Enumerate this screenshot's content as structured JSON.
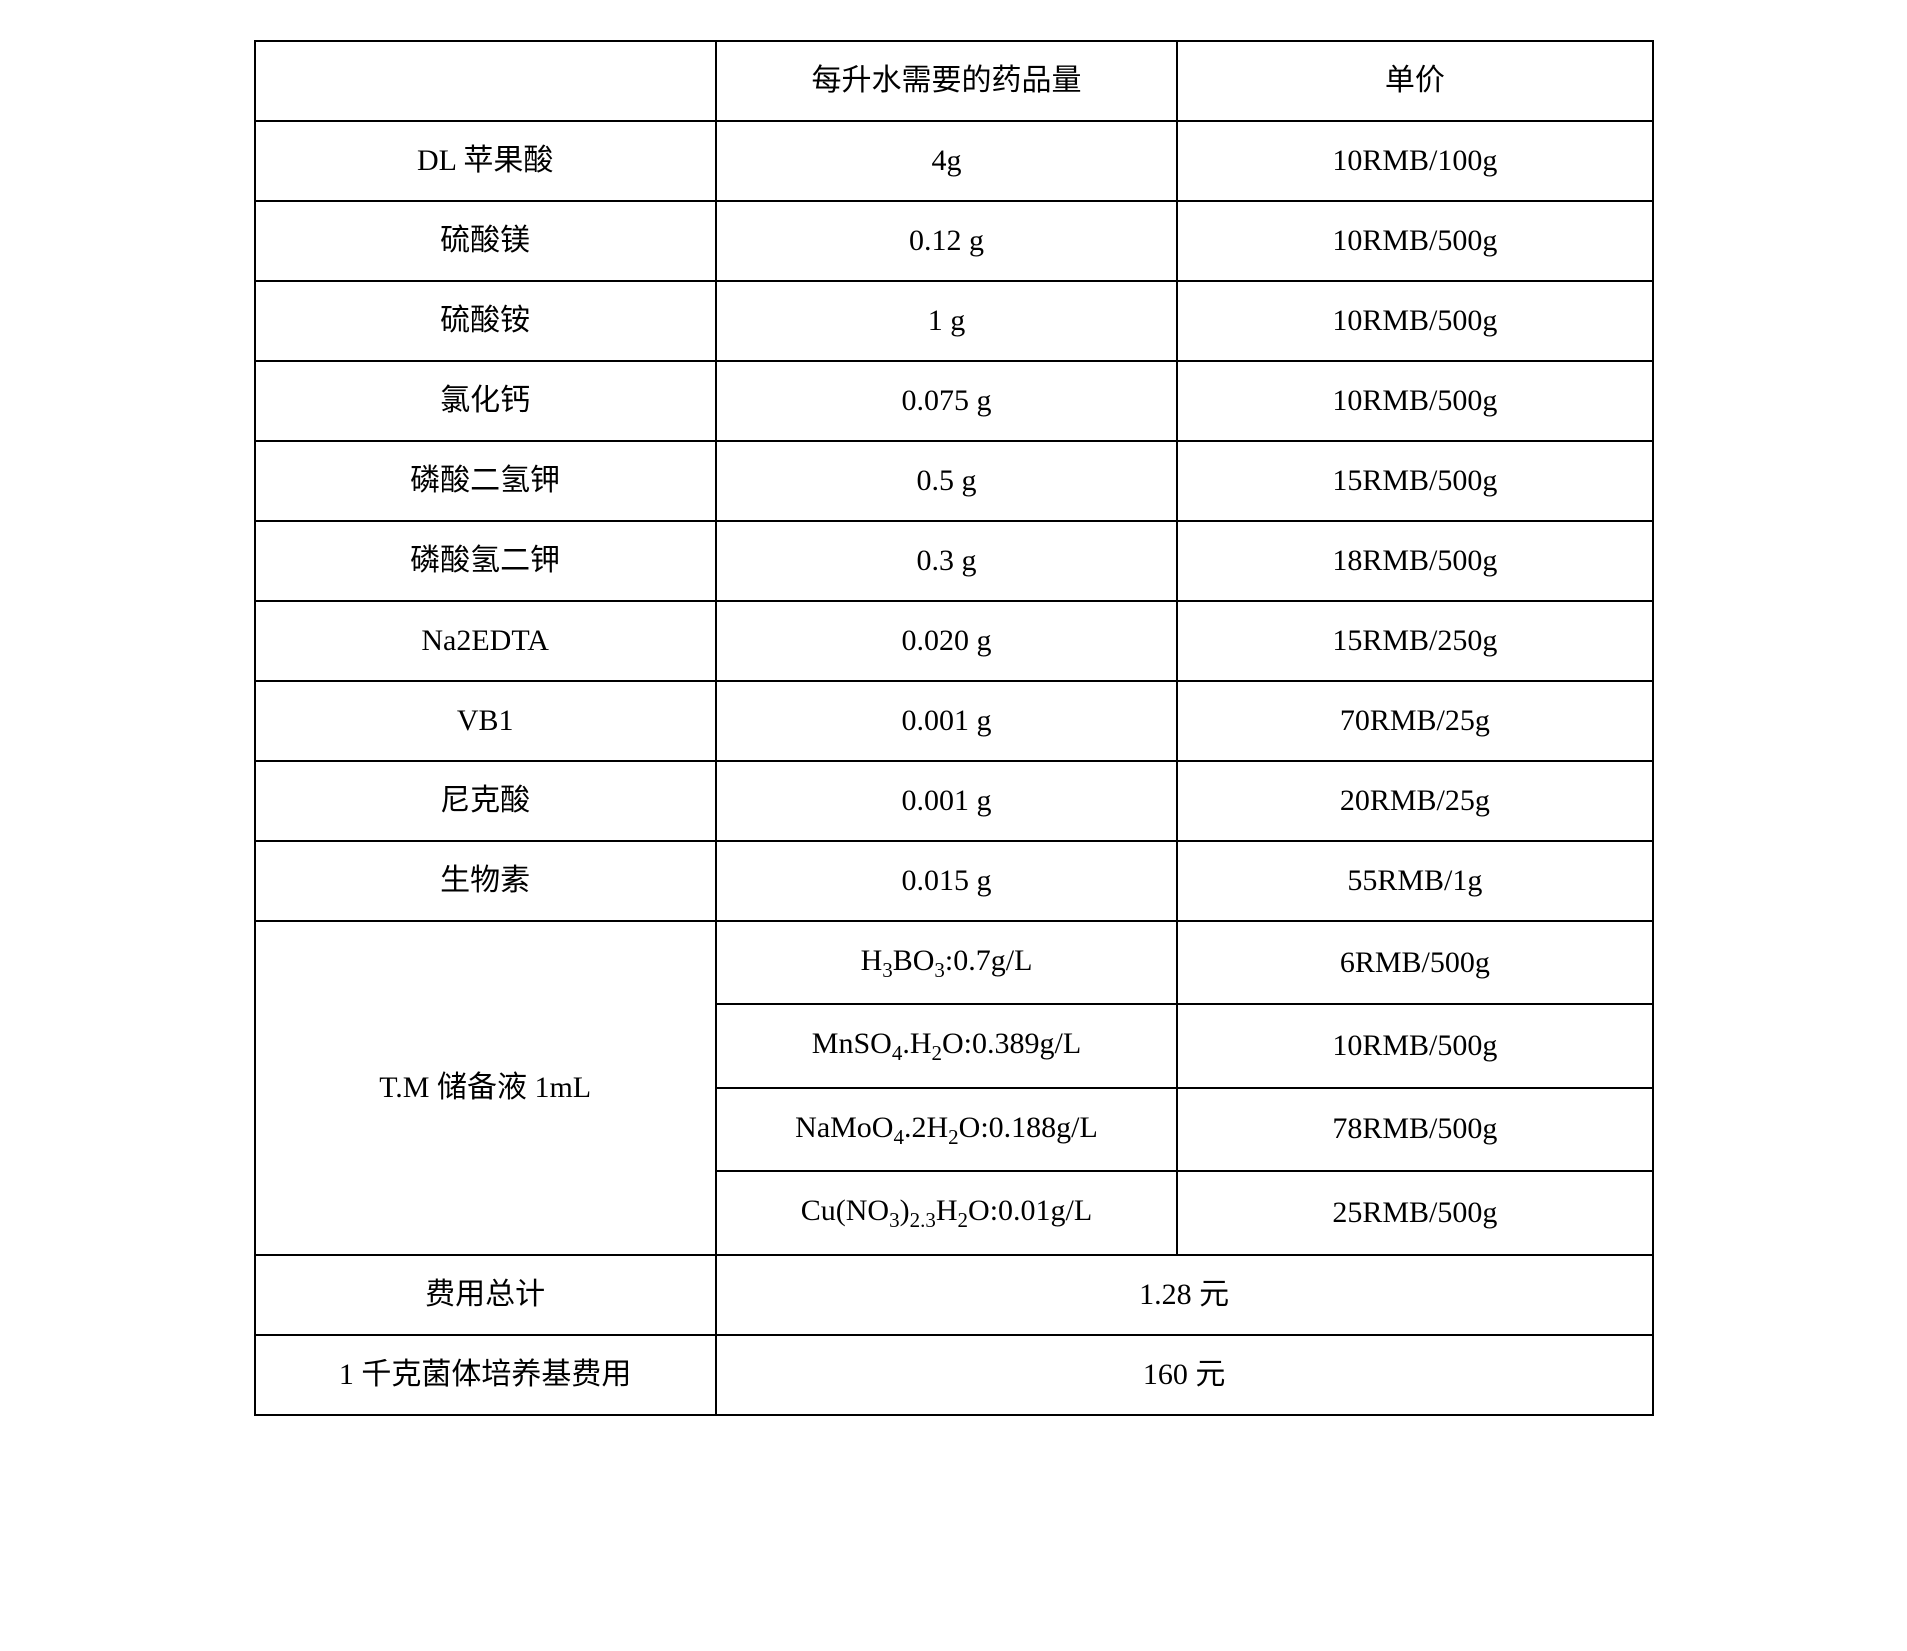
{
  "table": {
    "header": {
      "col1": "",
      "col2": "每升水需要的药品量",
      "col3": "单价"
    },
    "rows": [
      {
        "name": "DL 苹果酸",
        "amount": "4g",
        "price": "10RMB/100g"
      },
      {
        "name": "硫酸镁",
        "amount": "0.12 g",
        "price": "10RMB/500g"
      },
      {
        "name": "硫酸铵",
        "amount": "1 g",
        "price": "10RMB/500g"
      },
      {
        "name": "氯化钙",
        "amount": "0.075 g",
        "price": "10RMB/500g"
      },
      {
        "name": "磷酸二氢钾",
        "amount": "0.5 g",
        "price": "15RMB/500g"
      },
      {
        "name": "磷酸氢二钾",
        "amount": "0.3 g",
        "price": "18RMB/500g"
      },
      {
        "name": "Na2EDTA",
        "amount": "0.020 g",
        "price": "15RMB/250g"
      },
      {
        "name": "VB1",
        "amount": "0.001 g",
        "price": "70RMB/25g"
      },
      {
        "name": "尼克酸",
        "amount": "0.001 g",
        "price": "20RMB/25g"
      },
      {
        "name": "生物素",
        "amount": "0.015 g",
        "price": "55RMB/1g"
      }
    ],
    "stock_solution": {
      "label": "T.M 储备液 1mL",
      "items": [
        {
          "amount_html": "H<sub>3</sub>BO<sub>3</sub>:0.7g/L",
          "price": "6RMB/500g"
        },
        {
          "amount_html": "MnSO<sub>4</sub>.H<sub>2</sub>O:0.389g/L",
          "price": "10RMB/500g"
        },
        {
          "amount_html": "NaMoO<sub>4</sub>.2H<sub>2</sub>O:0.188g/L",
          "price": "78RMB/500g"
        },
        {
          "amount_html": "Cu(NO<sub>3</sub>)<sub>2.3</sub>H<sub>2</sub>O:0.01g/L",
          "price": "25RMB/500g"
        }
      ]
    },
    "summary": [
      {
        "label": "费用总计",
        "value": "1.28 元"
      },
      {
        "label": "1 千克菌体培养基费用",
        "value": "160 元"
      }
    ]
  },
  "style": {
    "font_family": "SimSun",
    "cell_font_size": 30,
    "border_color": "#000000",
    "border_width": 2,
    "background_color": "#ffffff",
    "text_color": "#000000",
    "column_widths": [
      "33%",
      "33%",
      "34%"
    ]
  }
}
